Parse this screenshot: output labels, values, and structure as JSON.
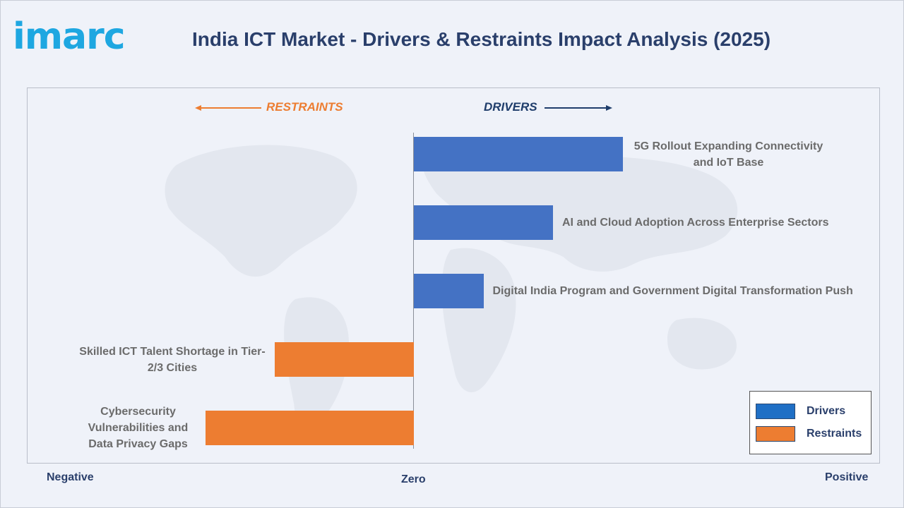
{
  "logo": {
    "text": "imarc"
  },
  "header": {
    "title": "India ICT Market - Drivers & Restraints Impact Analysis (2025)"
  },
  "directions": {
    "restraints": "RESTRAINTS",
    "drivers": "DRIVERS"
  },
  "axis": {
    "negative": "Negative",
    "zero": "Zero",
    "positive": "Positive"
  },
  "colors": {
    "drivers": "#4472c4",
    "restraints": "#ed7d31",
    "title": "#2a3f6b",
    "logo": "#1ea7e1"
  },
  "legend": {
    "drivers_label": "Drivers",
    "drivers_color": "#1f6fc5",
    "restraints_label": "Restraints",
    "restraints_color": "#ed7d31"
  },
  "chart_data": {
    "type": "bar",
    "orientation": "horizontal",
    "title": "India ICT Market - Drivers & Restraints Impact Analysis (2025)",
    "xlim": [
      -3,
      3
    ],
    "categories": [
      "5G Rollout Expanding Connectivity and IoT Base",
      "AI and Cloud Adoption Across Enterprise Sectors",
      "Digital India Program and Government Digital Transformation Push",
      "Skilled ICT Talent Shortage in Tier-2/3 Cities",
      "Cybersecurity Vulnerabilities and Data Privacy Gaps"
    ],
    "values": [
      3,
      2,
      1,
      -2,
      -3
    ],
    "series_types": [
      "Drivers",
      "Drivers",
      "Drivers",
      "Restraints",
      "Restraints"
    ],
    "legend_position": "bottom-right",
    "grid": false
  }
}
